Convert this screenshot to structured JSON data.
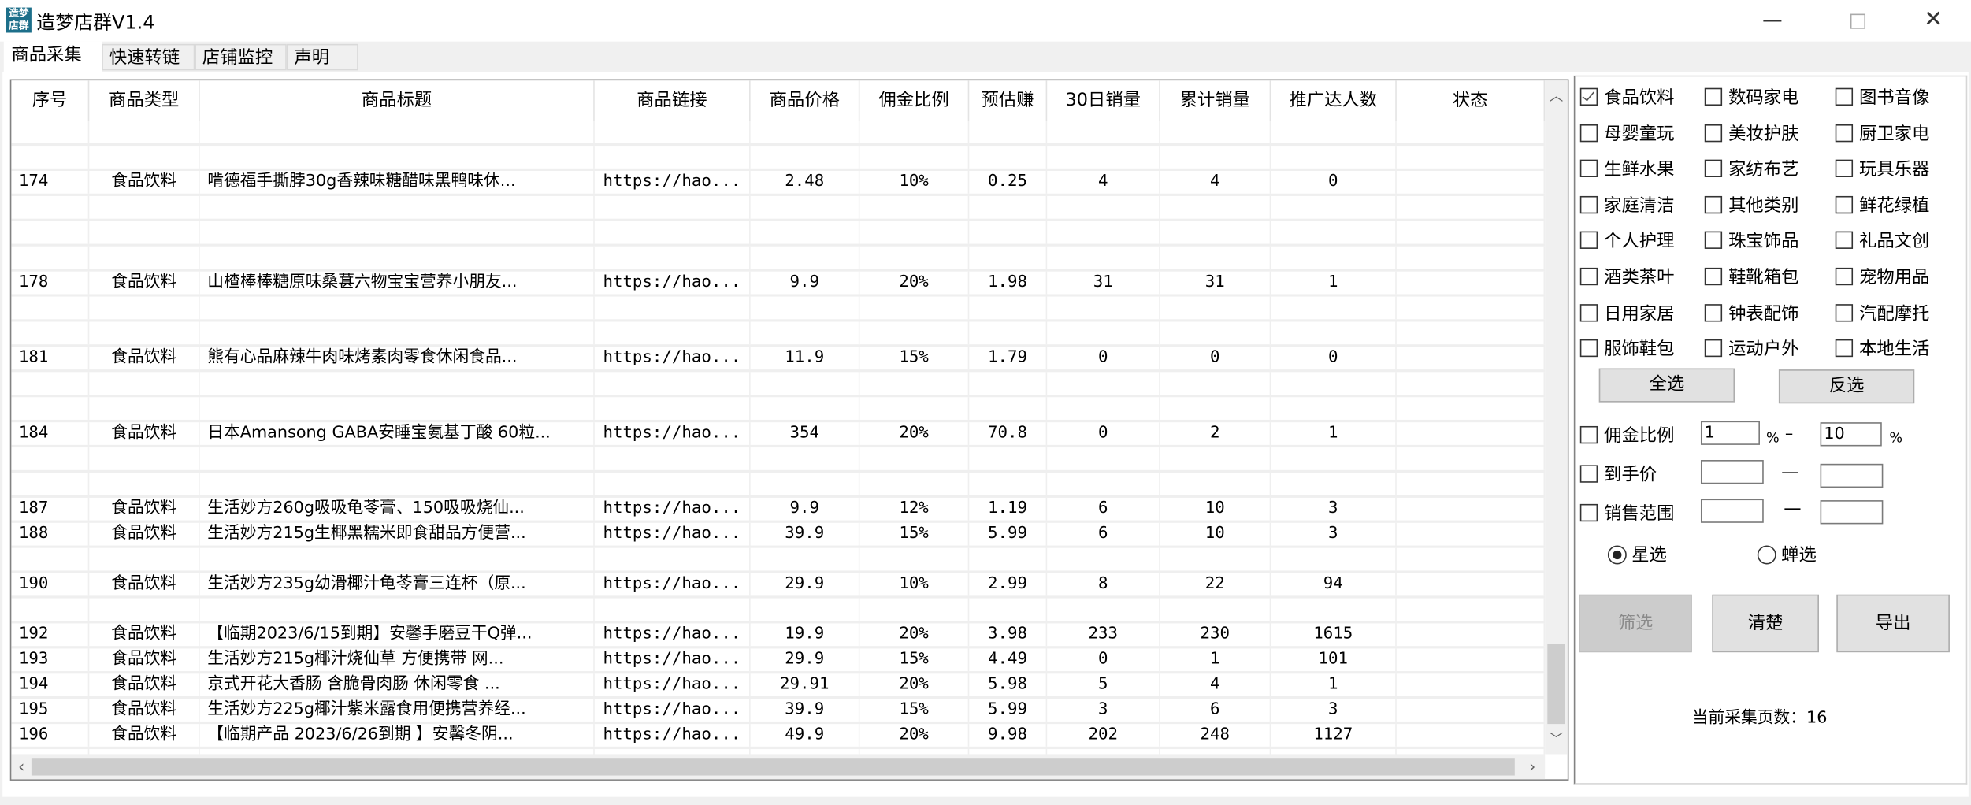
{
  "window": {
    "title": "造梦店群V1.4",
    "icon_text": "造梦店群",
    "controls": [
      "minimize-icon",
      "maximize-icon",
      "close-icon"
    ]
  },
  "tabs": [
    {
      "label": "商品采集",
      "selected": true
    },
    {
      "label": "快速转链"
    },
    {
      "label": "店铺监控"
    },
    {
      "label": "声明"
    }
  ],
  "table": {
    "columns": [
      "序号",
      "商品类型",
      "商品标题",
      "商品链接",
      "商品价格",
      "佣金比例",
      "预估赚",
      "30日销量",
      "累计销量",
      "推广达人数",
      "状态"
    ],
    "rows": [
      [],
      [],
      [
        "174",
        "食品饮料",
        "啃德福手撕脖30g香辣味糖醋味黑鸭味休...",
        "https://hao...",
        "2.48",
        "10%",
        "0.25",
        "4",
        "4",
        "0",
        ""
      ],
      [],
      [],
      [],
      [
        "178",
        "食品饮料",
        "山楂棒棒糖原味桑葚六物宝宝营养小朋友...",
        "https://hao...",
        "9.9",
        "20%",
        "1.98",
        "31",
        "31",
        "1",
        ""
      ],
      [],
      [],
      [
        "181",
        "食品饮料",
        "熊有心品麻辣牛肉味烤素肉零食休闲食品...",
        "https://hao...",
        "11.9",
        "15%",
        "1.79",
        "0",
        "0",
        "0",
        ""
      ],
      [],
      [],
      [
        "184",
        "食品饮料",
        "日本Amansong GABA安睡宝氨基丁酸 60粒...",
        "https://hao...",
        "354",
        "20%",
        "70.8",
        "0",
        "2",
        "1",
        ""
      ],
      [],
      [],
      [
        "187",
        "食品饮料",
        "生活妙方260g吸吸龟苓膏、150吸吸烧仙...",
        "https://hao...",
        "9.9",
        "12%",
        "1.19",
        "6",
        "10",
        "3",
        ""
      ],
      [
        "188",
        "食品饮料",
        "生活妙方215g生椰黑糯米即食甜品方便营...",
        "https://hao...",
        "39.9",
        "15%",
        "5.99",
        "6",
        "10",
        "3",
        ""
      ],
      [],
      [
        "190",
        "食品饮料",
        "生活妙方235g幼滑椰汁龟苓膏三连杯（原...",
        "https://hao...",
        "29.9",
        "10%",
        "2.99",
        "8",
        "22",
        "94",
        ""
      ],
      [],
      [
        "192",
        "食品饮料",
        "【临期2023/6/15到期】安馨手磨豆干Q弹...",
        "https://hao...",
        "19.9",
        "20%",
        "3.98",
        "233",
        "230",
        "1615",
        ""
      ],
      [
        "193",
        "食品饮料",
        "生活妙方215g椰汁烧仙草  方便携带 网...",
        "https://hao...",
        "29.9",
        "15%",
        "4.49",
        "0",
        "1",
        "101",
        ""
      ],
      [
        "194",
        "食品饮料",
        "京式开花大香肠 含脆骨肉肠 休闲零食 ...",
        "https://hao...",
        "29.91",
        "20%",
        "5.98",
        "5",
        "4",
        "1",
        ""
      ],
      [
        "195",
        "食品饮料",
        "生活妙方225g椰汁紫米露食用便携营养经...",
        "https://hao...",
        "39.9",
        "15%",
        "5.99",
        "3",
        "6",
        "3",
        ""
      ],
      [
        "196",
        "食品饮料",
        "【临期产品 2023/6/26到期 】安馨冬阴...",
        "https://hao...",
        "49.9",
        "20%",
        "9.98",
        "202",
        "248",
        "1127",
        ""
      ],
      []
    ]
  },
  "categories": [
    {
      "label": "食品饮料",
      "checked": true
    },
    {
      "label": "数码家电"
    },
    {
      "label": "图书音像"
    },
    {
      "label": "母婴童玩"
    },
    {
      "label": "美妆护肤"
    },
    {
      "label": "厨卫家电"
    },
    {
      "label": "生鲜水果"
    },
    {
      "label": "家纺布艺"
    },
    {
      "label": "玩具乐器"
    },
    {
      "label": "家庭清洁"
    },
    {
      "label": "其他类别"
    },
    {
      "label": "鲜花绿植"
    },
    {
      "label": "个人护理"
    },
    {
      "label": "珠宝饰品"
    },
    {
      "label": "礼品文创"
    },
    {
      "label": "酒类茶叶"
    },
    {
      "label": "鞋靴箱包"
    },
    {
      "label": "宠物用品"
    },
    {
      "label": "日用家居"
    },
    {
      "label": "钟表配饰"
    },
    {
      "label": "汽配摩托"
    },
    {
      "label": "服饰鞋包"
    },
    {
      "label": "运动户外"
    },
    {
      "label": "本地生活"
    }
  ],
  "panel": {
    "select_all": "全选",
    "invert": "反选",
    "commission": {
      "label": "佣金比例",
      "min": "1",
      "max": "10",
      "unit": "%",
      "dash": "–"
    },
    "final_price": {
      "label": "到手价",
      "min": "",
      "max": "",
      "dash": "—"
    },
    "sales_range": {
      "label": "销售范围",
      "min": "",
      "max": "",
      "dash": "—"
    },
    "radios": [
      {
        "label": "星选",
        "selected": true
      },
      {
        "label": "蝉选",
        "selected": false
      }
    ],
    "filter": "筛选",
    "clear": "清楚",
    "export": "导出",
    "page_count_label": "当前采集页数：",
    "page_count": "16"
  }
}
